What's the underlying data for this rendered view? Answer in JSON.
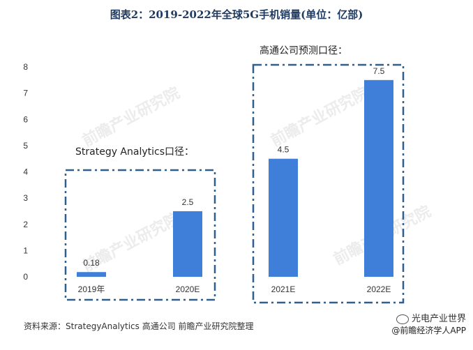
{
  "page_title": "图表2：2019-2022年全球5G手机销量(单位：亿部)",
  "source_text": "资料来源：StrategyAnalytics 高通公司 前瞻产业研究院整理",
  "watermark": "前瞻产业研究院",
  "brand": {
    "line1": "光电产业世界",
    "line2": "@前瞻经济学人APP"
  },
  "colors": {
    "bar": "#3f7fd9",
    "box": "#2f5f8a",
    "title": "#1f3a5f"
  },
  "chart_data": {
    "type": "bar",
    "title": "图表2：2019-2022年全球5G手机销量(单位：亿部)",
    "categories": [
      "2019年",
      "2020E",
      "2021E",
      "2022E"
    ],
    "values": [
      0.18,
      2.5,
      4.5,
      7.5
    ],
    "data_labels": [
      "0.18",
      "2.5",
      "4.5",
      "7.5"
    ],
    "ylim": [
      0,
      8
    ],
    "yticks": [
      0,
      1,
      2,
      3,
      4,
      5,
      6,
      7,
      8
    ],
    "grid": false,
    "groups": [
      {
        "label": "Strategy Analytics口径：",
        "categories": [
          "2019年",
          "2020E"
        ]
      },
      {
        "label": "高通公司预测口径：",
        "categories": [
          "2021E",
          "2022E"
        ]
      }
    ]
  }
}
